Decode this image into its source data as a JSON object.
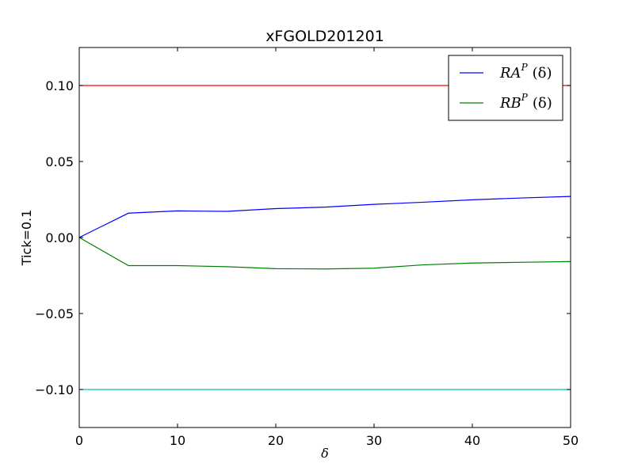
{
  "chart_data": {
    "type": "line",
    "title": "xFGOLD201201",
    "xlabel": "δ",
    "ylabel": "Tick=0.1",
    "xlim": [
      0,
      50
    ],
    "ylim": [
      -0.125,
      0.125
    ],
    "x_ticks": [
      0,
      10,
      20,
      30,
      40,
      50
    ],
    "y_ticks": [
      0.1,
      0.05,
      0.0,
      -0.05,
      -0.1
    ],
    "x_tick_labels": [
      "0",
      "10",
      "20",
      "30",
      "40",
      "50"
    ],
    "y_tick_labels": [
      "0.10",
      "0.05",
      "0.00",
      "−0.05",
      "−0.10"
    ],
    "grid": false,
    "legend_position": "top-right",
    "x": [
      0,
      5,
      10,
      15,
      20,
      25,
      30,
      35,
      40,
      45,
      50
    ],
    "series": [
      {
        "name": "RA^P (δ)",
        "color": "#0000ff",
        "values": [
          0.0,
          0.016,
          0.0175,
          0.0172,
          0.019,
          0.02,
          0.0218,
          0.0232,
          0.0248,
          0.026,
          0.027
        ]
      },
      {
        "name": "RB^P (δ)",
        "color": "#008000",
        "values": [
          0.0,
          -0.0185,
          -0.0185,
          -0.0192,
          -0.0205,
          -0.0207,
          -0.0202,
          -0.018,
          -0.0168,
          -0.0163,
          -0.0158
        ]
      }
    ],
    "reference_lines": [
      {
        "value": 0.1,
        "color": "#ff0000"
      },
      {
        "value": -0.1,
        "color": "#00bfbf"
      }
    ],
    "legend": [
      {
        "base": "RA",
        "sup": "P",
        "arg": "(δ)",
        "color": "#0000ff"
      },
      {
        "base": "RB",
        "sup": "P",
        "arg": "(δ)",
        "color": "#008000"
      }
    ]
  }
}
